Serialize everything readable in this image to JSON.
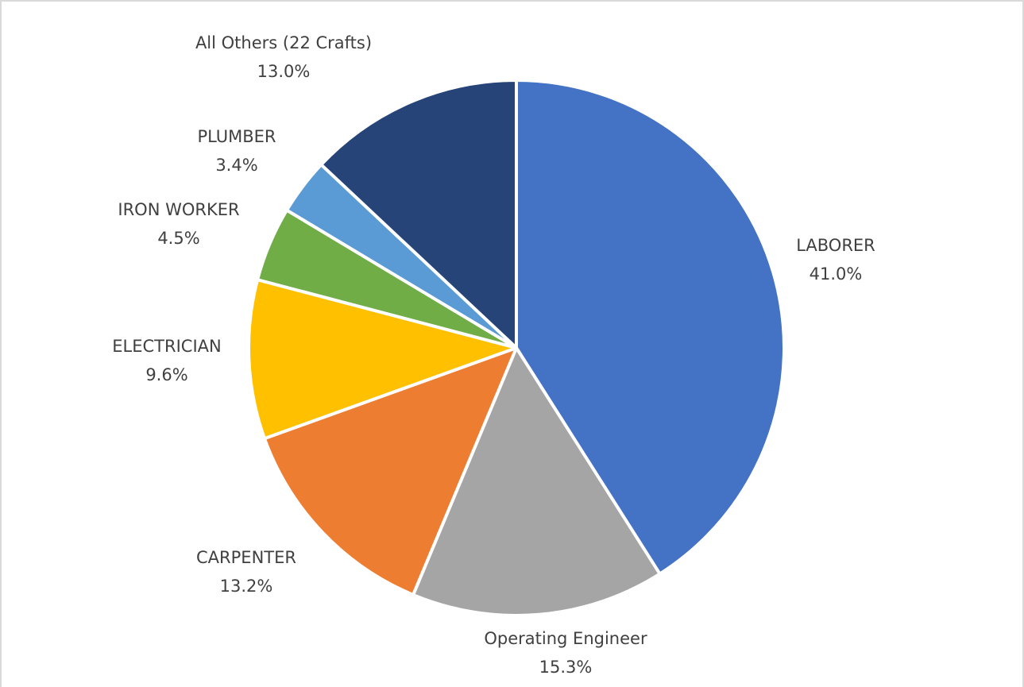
{
  "chart_data": {
    "type": "pie",
    "categories": [
      "LABORER",
      "Operating Engineer",
      "CARPENTER",
      "ELECTRICIAN",
      "IRON WORKER",
      "PLUMBER",
      "All Others (22 Crafts)"
    ],
    "values": [
      41.0,
      15.3,
      13.2,
      9.6,
      4.5,
      3.4,
      13.0
    ],
    "value_labels": [
      "41.0%",
      "15.3%",
      "13.2%",
      "9.6%",
      "4.5%",
      "3.4%",
      "13.0%"
    ],
    "colors": [
      "#4472c4",
      "#a5a5a5",
      "#ed7d31",
      "#ffc000",
      "#70ad47",
      "#5b9bd5",
      "#264478"
    ]
  }
}
